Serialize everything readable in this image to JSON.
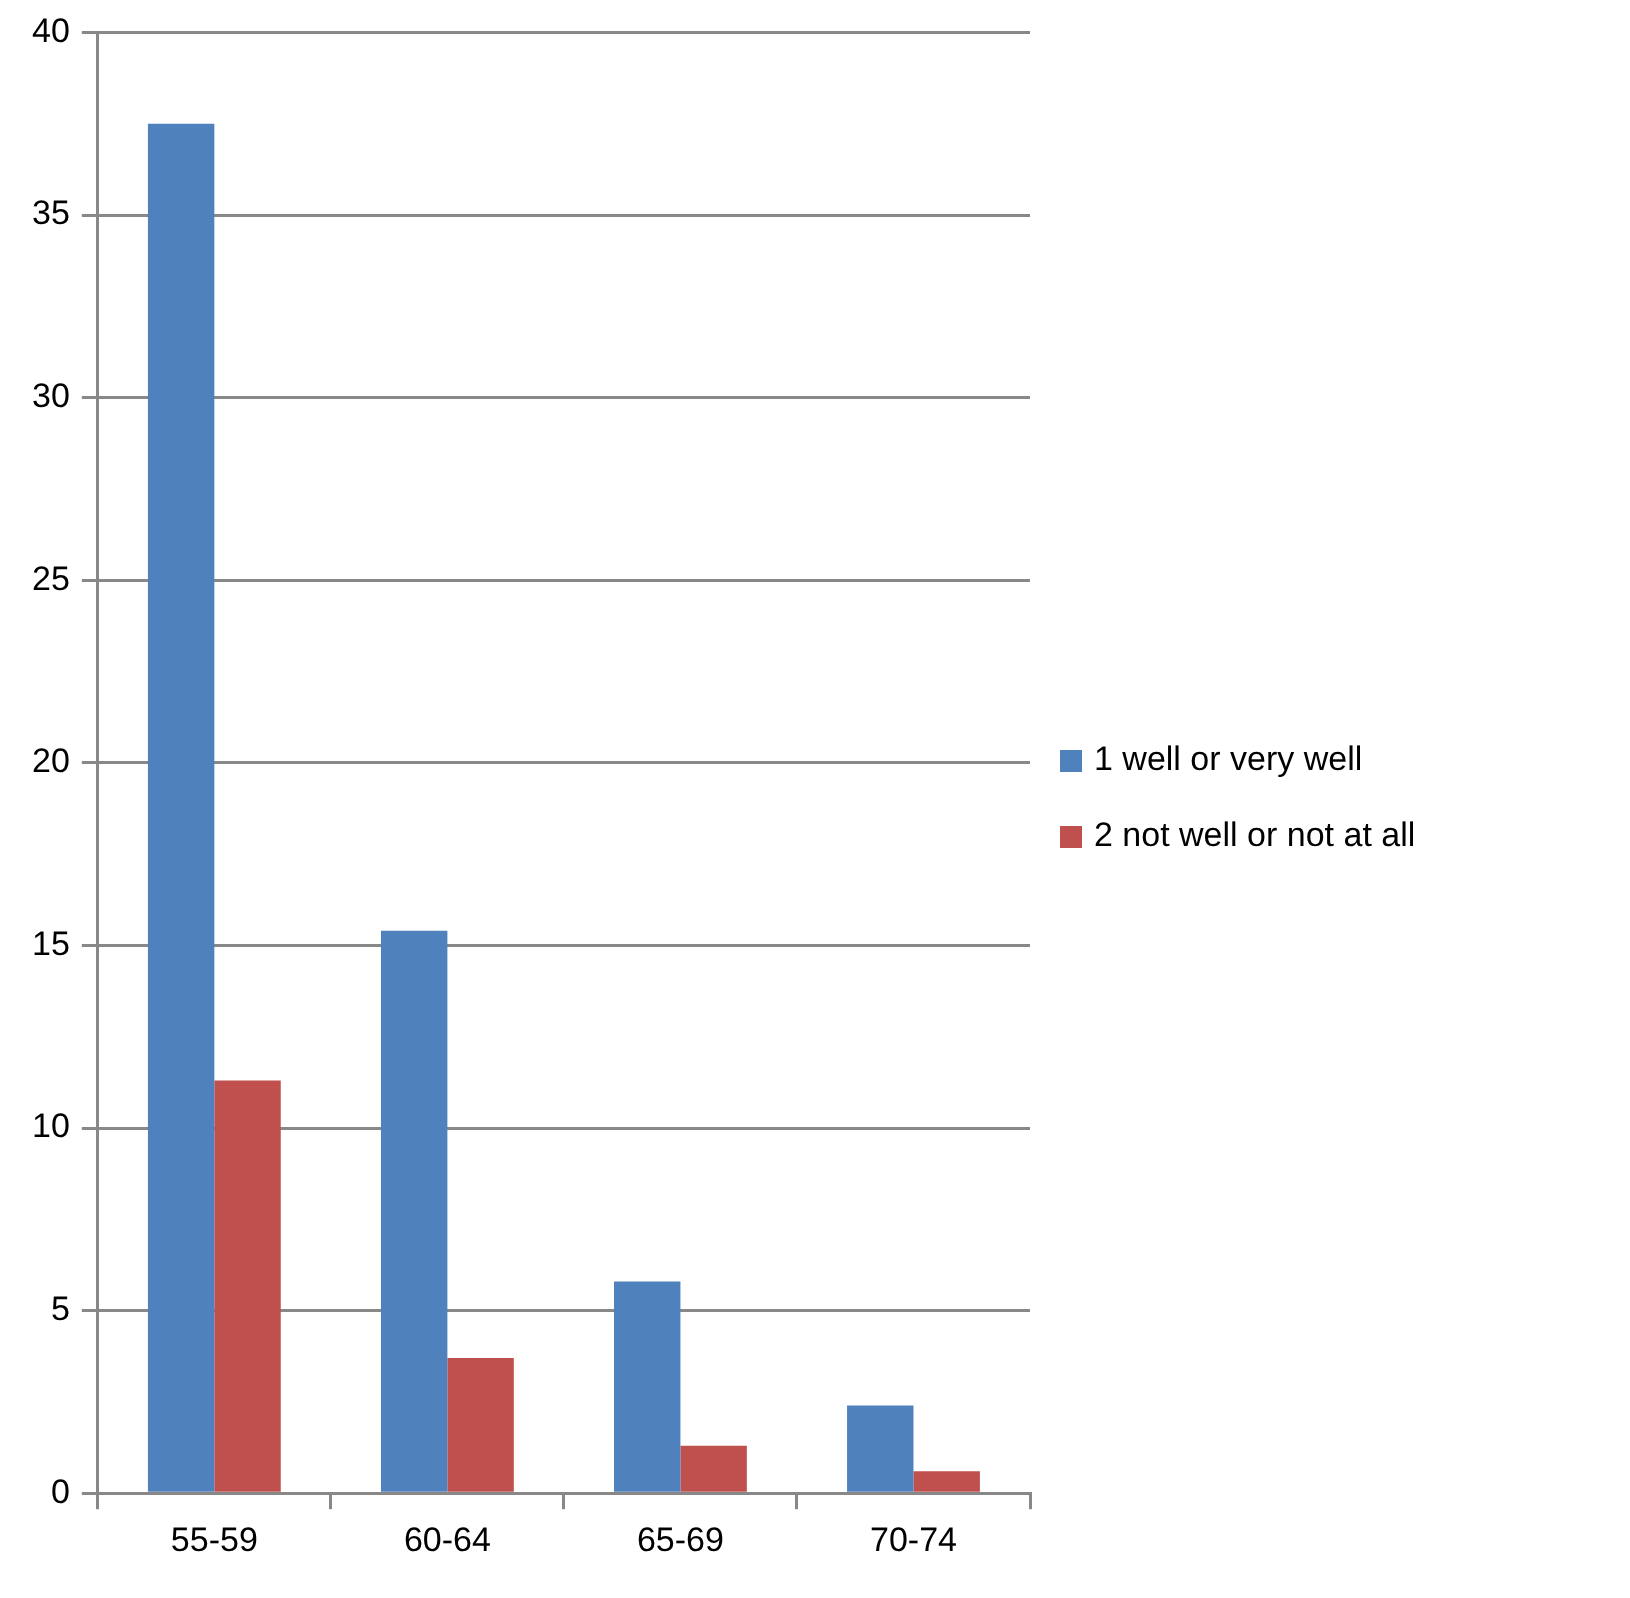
{
  "chart_data": {
    "type": "bar",
    "categories": [
      "55-59",
      "60-64",
      "65-69",
      "70-74"
    ],
    "series": [
      {
        "name": "1 well or very well",
        "color": "#4f81bd",
        "values": [
          37.5,
          15.4,
          5.8,
          2.4
        ]
      },
      {
        "name": "2 not well or not at all",
        "color": "#c0504d",
        "values": [
          11.3,
          3.7,
          1.3,
          0.6
        ]
      }
    ],
    "ylim": [
      0,
      40
    ],
    "yticks": [
      0,
      5,
      10,
      15,
      20,
      25,
      30,
      35,
      40
    ],
    "grid": "y",
    "legend": "right"
  }
}
